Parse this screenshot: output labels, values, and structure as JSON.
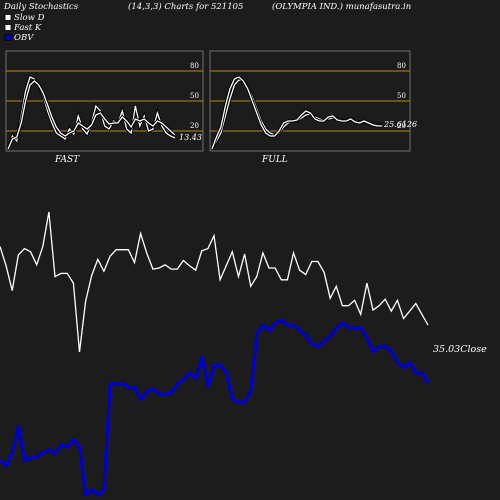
{
  "header": {
    "left_title": "Daily Stochastics",
    "params": "(14,3,3) Charts for 521105",
    "company": "(OLYMPIA IND.) munafasutra.in"
  },
  "legend": [
    {
      "label": "Slow  D",
      "color": "#ffffff"
    },
    {
      "label": "Fast K",
      "color": "#ffffff"
    },
    {
      "label": "OBV",
      "color": "#0000cc"
    }
  ],
  "colors": {
    "background": "#1c1c1c",
    "panel_border": "#888888",
    "reference_line": "#b8860b",
    "price_line": "#ffffff",
    "obv_line": "#0000cc"
  },
  "chart_data": [
    {
      "type": "line",
      "panel": "FAST",
      "label": "FAST",
      "ylim": [
        0,
        100
      ],
      "y_ticks": [
        20,
        50,
        80
      ],
      "reference_lines": [
        20,
        50,
        80
      ],
      "last_value_label": "13.43",
      "series": [
        {
          "name": "Fast K",
          "values": [
            2,
            15,
            10,
            35,
            60,
            74,
            72,
            65,
            55,
            40,
            28,
            18,
            15,
            12,
            22,
            17,
            35,
            22,
            17,
            28,
            45,
            40,
            25,
            22,
            30,
            28,
            40,
            22,
            18,
            45,
            25,
            35,
            20,
            22,
            38,
            25,
            18,
            15,
            13
          ]
        },
        {
          "name": "Slow  D",
          "values": [
            2,
            12,
            14,
            28,
            50,
            66,
            70,
            66,
            58,
            46,
            34,
            24,
            18,
            15,
            18,
            20,
            28,
            25,
            22,
            26,
            36,
            38,
            32,
            27,
            28,
            28,
            34,
            30,
            24,
            32,
            30,
            32,
            28,
            25,
            30,
            28,
            24,
            20,
            16
          ]
        }
      ]
    },
    {
      "type": "line",
      "panel": "FULL",
      "label": "FULL",
      "ylim": [
        0,
        100
      ],
      "y_ticks": [
        20,
        50,
        80
      ],
      "reference_lines": [
        20,
        50,
        80
      ],
      "last_value_label": "25.6126",
      "series": [
        {
          "name": "Slow  D",
          "values": [
            2,
            10,
            18,
            35,
            52,
            66,
            71,
            70,
            64,
            54,
            42,
            30,
            22,
            18,
            16,
            18,
            24,
            28,
            30,
            30,
            33,
            36,
            37,
            34,
            32,
            31,
            32,
            33,
            32,
            31,
            30,
            31,
            30,
            29,
            29,
            28,
            27,
            26,
            26
          ]
        },
        {
          "name": "Fast K",
          "values": [
            2,
            14,
            24,
            45,
            62,
            72,
            74,
            70,
            62,
            50,
            38,
            26,
            18,
            15,
            15,
            20,
            28,
            30,
            30,
            31,
            36,
            40,
            38,
            32,
            30,
            30,
            34,
            35,
            31,
            30,
            30,
            32,
            29,
            28,
            30,
            28,
            26,
            25,
            25
          ]
        }
      ]
    },
    {
      "type": "line",
      "panel": "price_obv",
      "last_close_label": "35.03",
      "close_word": "Close",
      "series": [
        {
          "name": "Close",
          "values": [
            42.3,
            40.5,
            38.2,
            41.5,
            42.1,
            41.8,
            40.6,
            42.3,
            45.5,
            39.5,
            39.8,
            39.8,
            38.9,
            32.5,
            37.2,
            39.6,
            41.1,
            40.0,
            41.4,
            42.0,
            42.0,
            42.0,
            40.8,
            43.5,
            41.7,
            40.2,
            40.3,
            40.6,
            40.2,
            40.2,
            41.0,
            40.5,
            40.1,
            41.9,
            42.1,
            43.3,
            39.2,
            40.5,
            41.8,
            39.5,
            41.6,
            38.6,
            39.5,
            41.7,
            40.3,
            40.3,
            39.2,
            39.2,
            41.7,
            40.1,
            39.7,
            40.9,
            40.9,
            39.9,
            37.5,
            38.6,
            36.8,
            36.8,
            37.3,
            36.0,
            38.9,
            36.4,
            36.8,
            37.4,
            36.3,
            37.3,
            35.6,
            36.3,
            37.0,
            36.0,
            35.0
          ]
        },
        {
          "name": "OBV",
          "values": [
            -8.5,
            -9.5,
            -7.0,
            -2.0,
            -8.5,
            -8.0,
            -7.8,
            -7.0,
            -6.5,
            -7.2,
            -5.5,
            -6.0,
            -4.5,
            -6.0,
            -15.0,
            -14.0,
            -15.0,
            -14.0,
            6.0,
            6.0,
            6.0,
            5.2,
            5.3,
            3.0,
            4.5,
            5.0,
            4.0,
            4.0,
            4.3,
            6.0,
            6.8,
            8.0,
            7.0,
            11.0,
            5.5,
            9.5,
            9.5,
            8.0,
            3.0,
            2.5,
            2.5,
            4.8,
            15.5,
            17.0,
            16.0,
            17.5,
            18.0,
            17.0,
            17.0,
            16.0,
            15.0,
            13.5,
            13.0,
            14.0,
            15.0,
            16.5,
            17.5,
            16.5,
            16.5,
            16.5,
            14.5,
            12.0,
            13.0,
            13.0,
            12.0,
            10.0,
            9.0,
            10.0,
            8.0,
            8.0,
            6.0
          ]
        }
      ]
    }
  ]
}
